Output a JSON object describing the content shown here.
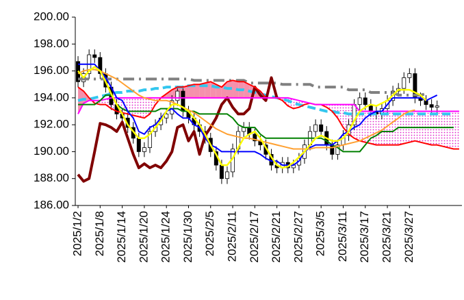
{
  "chart_data": {
    "type": "candlestick",
    "categories": [
      "2025/1/2",
      null,
      null,
      null,
      "2025/1/8",
      null,
      null,
      null,
      "2025/1/14",
      null,
      null,
      null,
      "2025/1/20",
      null,
      null,
      null,
      "2025/1/24",
      null,
      null,
      null,
      "2025/1/30",
      null,
      null,
      null,
      "2025/2/5",
      null,
      null,
      null,
      "2025/2/11",
      null,
      null,
      null,
      "2025/2/17",
      null,
      null,
      null,
      "2025/2/21",
      null,
      null,
      null,
      "2025/2/27",
      null,
      null,
      null,
      "2025/3/5",
      null,
      null,
      null,
      "2025/3/11",
      null,
      null,
      null,
      "2025/3/17",
      null,
      null,
      null,
      "2025/3/21",
      null,
      null,
      null,
      "2025/3/27",
      null,
      null,
      null,
      null,
      null,
      null,
      null,
      null,
      null
    ],
    "ylim": [
      186,
      200
    ],
    "yticks": [
      {
        "value": 186,
        "label": "186.00"
      },
      {
        "value": 188,
        "label": "188.00"
      },
      {
        "value": 190,
        "label": "190.00"
      },
      {
        "value": 192,
        "label": "192.00"
      },
      {
        "value": 194,
        "label": "194.00"
      },
      {
        "value": 196,
        "label": "196.00"
      },
      {
        "value": 198,
        "label": "198.00"
      },
      {
        "value": 200,
        "label": "200.00"
      }
    ],
    "grid": false,
    "up_color": "#ffffff",
    "down_color": "#000000",
    "ohlc": {
      "open": [
        196.7,
        195.2,
        195.8,
        197.2,
        197.0,
        195.8,
        194.8,
        193.5,
        192.8,
        192.5,
        191.8,
        191.0,
        190.0,
        190.3,
        191.5,
        192.0,
        192.5,
        192.8,
        193.8,
        194.5,
        193.0,
        192.5,
        192.0,
        191.5,
        191.0,
        190.0,
        189.0,
        188.0,
        188.5,
        190.2,
        191.5,
        191.8,
        191.3,
        190.8,
        190.5,
        189.8,
        189.0,
        188.8,
        189.2,
        188.8,
        189.0,
        189.5,
        190.5,
        191.5,
        192.0,
        191.5,
        190.5,
        189.8,
        190.5,
        191.2,
        192.0,
        193.5,
        194.0,
        193.5,
        193.0,
        192.8,
        193.2,
        193.8,
        194.5,
        194.7,
        195.5,
        195.8,
        194.0,
        193.8,
        193.5,
        193.3,
        null,
        null,
        null,
        null
      ],
      "high": [
        197.1,
        196.2,
        197.6,
        197.6,
        197.4,
        196.2,
        195.2,
        193.9,
        193.2,
        192.9,
        192.2,
        191.4,
        190.7,
        191.9,
        192.4,
        192.9,
        193.2,
        194.2,
        194.9,
        194.9,
        193.4,
        192.9,
        192.4,
        191.9,
        191.4,
        190.4,
        189.4,
        188.9,
        190.6,
        191.9,
        192.2,
        192.2,
        191.7,
        191.2,
        190.9,
        190.2,
        189.4,
        189.6,
        189.6,
        189.4,
        189.9,
        190.9,
        191.9,
        192.4,
        192.4,
        191.9,
        190.9,
        190.9,
        191.6,
        192.4,
        193.9,
        194.4,
        194.4,
        193.9,
        193.4,
        193.6,
        194.2,
        194.9,
        195.1,
        195.9,
        196.2,
        196.2,
        194.4,
        194.2,
        193.9,
        193.8,
        null,
        null,
        null,
        null
      ],
      "low": [
        194.8,
        194.8,
        195.4,
        196.6,
        195.4,
        194.4,
        193.1,
        192.4,
        192.1,
        191.4,
        190.6,
        189.6,
        189.6,
        189.9,
        191.1,
        191.6,
        192.1,
        192.4,
        193.4,
        192.6,
        192.1,
        191.6,
        191.1,
        190.6,
        189.6,
        188.6,
        187.6,
        187.6,
        188.1,
        189.8,
        191.1,
        190.9,
        190.4,
        190.1,
        189.4,
        188.6,
        188.4,
        188.4,
        188.4,
        188.4,
        188.6,
        189.1,
        190.1,
        191.1,
        191.1,
        190.1,
        189.4,
        189.4,
        190.1,
        190.8,
        191.6,
        193.1,
        193.1,
        192.6,
        192.4,
        192.4,
        192.8,
        193.4,
        194.1,
        194.3,
        195.1,
        193.6,
        193.4,
        193.1,
        192.9,
        192.9,
        null,
        null,
        null,
        null
      ],
      "close": [
        195.2,
        195.8,
        197.2,
        197.0,
        195.8,
        194.8,
        193.5,
        192.8,
        192.5,
        191.8,
        191.0,
        190.0,
        190.3,
        191.5,
        192.0,
        192.5,
        192.8,
        193.8,
        194.5,
        193.0,
        192.5,
        192.0,
        191.5,
        191.0,
        190.0,
        189.0,
        188.0,
        188.5,
        190.2,
        191.5,
        191.8,
        191.3,
        190.8,
        190.5,
        189.8,
        189.0,
        188.8,
        189.2,
        188.8,
        189.0,
        189.5,
        190.5,
        191.5,
        192.0,
        191.5,
        190.5,
        189.8,
        190.5,
        191.2,
        192.0,
        193.5,
        194.0,
        193.5,
        193.0,
        192.8,
        193.2,
        193.8,
        194.5,
        194.7,
        195.5,
        195.8,
        194.0,
        193.8,
        193.5,
        193.3,
        193.4,
        null,
        null,
        null,
        null
      ]
    },
    "cloud": {
      "span_a": 3,
      "span_b": 4,
      "a_above_color": "#f590ac",
      "b_above_color": "#e020c8"
    },
    "series": [
      {
        "color": "#808080",
        "width": 4,
        "dash": "16 7 3 7",
        "values": [
          195.4,
          195.4,
          195.4,
          195.4,
          195.4,
          195.4,
          195.4,
          195.4,
          195.4,
          195.4,
          195.4,
          195.4,
          195.4,
          195.4,
          195.4,
          195.4,
          195.4,
          195.4,
          195.4,
          195.4,
          195.4,
          195.3,
          195.3,
          195.3,
          195.3,
          195.3,
          195.3,
          195.3,
          195.3,
          195.3,
          195.3,
          195.1,
          195.1,
          195.1,
          195.1,
          195.1,
          195.1,
          195.0,
          195.0,
          195.0,
          195.0,
          195.0,
          195.0,
          194.8,
          194.8,
          194.8,
          194.8,
          194.8,
          194.8,
          194.6,
          194.6,
          194.6,
          194.6,
          194.4,
          194.4,
          194.4,
          194.4,
          194.4,
          194.2,
          194.2,
          194.2,
          194.2,
          194.2,
          194.3,
          null,
          null,
          null,
          null,
          null,
          null
        ]
      },
      {
        "color": "#33c6ee",
        "width": 4,
        "dash": "12 6",
        "values": [
          193.8,
          193.9,
          193.9,
          194.0,
          194.1,
          194.2,
          194.3,
          194.4,
          194.4,
          194.5,
          194.5,
          194.5,
          194.6,
          194.6,
          194.7,
          194.7,
          194.8,
          194.8,
          194.8,
          194.8,
          194.9,
          194.9,
          194.9,
          194.9,
          194.9,
          194.8,
          194.8,
          194.7,
          194.7,
          194.6,
          194.6,
          194.5,
          194.4,
          194.3,
          194.2,
          194.1,
          194.0,
          193.9,
          193.8,
          193.6,
          193.5,
          193.4,
          193.3,
          193.2,
          193.1,
          193.0,
          193.0,
          192.9,
          192.9,
          192.8,
          192.8,
          192.8,
          192.8,
          192.8,
          192.8,
          192.8,
          192.8,
          192.8,
          192.8,
          192.8,
          192.8,
          192.8,
          192.8,
          192.8,
          192.8,
          192.8,
          192.8,
          192.8,
          192.8,
          null
        ]
      },
      {
        "color": "#800000",
        "width": 4,
        "dash": null,
        "values": [
          188.3,
          187.8,
          188.0,
          190.0,
          192.1,
          192.0,
          191.8,
          191.5,
          192.2,
          191.0,
          189.8,
          188.8,
          189.1,
          188.8,
          189.0,
          188.8,
          189.3,
          190.0,
          191.8,
          192.0,
          190.8,
          191.5,
          189.8,
          191.2,
          191.8,
          192.5,
          193.5,
          194.0,
          193.3,
          192.8,
          192.8,
          193.2,
          194.8,
          194.2,
          193.8,
          195.5,
          194.0,
          null,
          null,
          null,
          null,
          null,
          null,
          null,
          null,
          null,
          null,
          null,
          null,
          null,
          null,
          null,
          null,
          null,
          null,
          null,
          null,
          null,
          null,
          null,
          null,
          null,
          null,
          null,
          null,
          null,
          null,
          null,
          null,
          null
        ]
      },
      {
        "color": "#ff0000",
        "width": 2,
        "dash": null,
        "values": [
          194.8,
          194.5,
          194.0,
          193.6,
          193.5,
          193.5,
          193.2,
          193.0,
          192.9,
          192.8,
          192.7,
          192.6,
          192.5,
          192.8,
          193.5,
          194.0,
          194.3,
          194.6,
          194.8,
          194.8,
          194.9,
          195.0,
          195.0,
          195.1,
          195.2,
          195.0,
          194.8,
          195.2,
          195.3,
          195.2,
          195.2,
          195.0,
          194.8,
          194.5,
          194.0,
          194.0,
          194.0,
          193.8,
          193.4,
          193.2,
          193.3,
          193.5,
          193.6,
          193.5,
          193.5,
          193.3,
          193.0,
          192.5,
          191.8,
          191.3,
          191.0,
          190.8,
          190.7,
          190.6,
          190.5,
          190.5,
          190.5,
          190.5,
          190.5,
          190.6,
          190.7,
          190.8,
          190.7,
          190.6,
          190.5,
          190.5,
          190.4,
          190.3,
          190.2,
          190.2
        ]
      },
      {
        "color": "#ff00ff",
        "width": 2,
        "dash": null,
        "values": [
          192.8,
          193.6,
          193.8,
          193.8,
          193.8,
          193.9,
          194.0,
          194.0,
          194.0,
          194.0,
          194.0,
          194.0,
          194.0,
          194.0,
          194.0,
          194.0,
          194.0,
          194.0,
          194.0,
          194.0,
          194.0,
          194.0,
          194.0,
          194.0,
          194.0,
          194.0,
          194.0,
          194.0,
          194.0,
          194.0,
          194.0,
          194.0,
          194.0,
          194.0,
          194.0,
          194.0,
          194.0,
          194.0,
          194.0,
          193.9,
          193.8,
          193.7,
          193.6,
          193.5,
          193.5,
          193.5,
          193.5,
          193.5,
          193.5,
          193.5,
          193.5,
          193.0,
          193.0,
          193.0,
          193.0,
          193.0,
          193.0,
          193.0,
          193.0,
          193.0,
          193.0,
          193.0,
          193.0,
          193.0,
          193.0,
          193.0,
          193.0,
          193.0,
          193.0,
          193.0
        ]
      },
      {
        "color": "#008000",
        "width": 2,
        "dash": null,
        "values": [
          193.5,
          193.5,
          193.5,
          193.5,
          193.8,
          194.2,
          194.2,
          193.5,
          193.2,
          193.0,
          193.0,
          193.0,
          193.0,
          193.0,
          193.0,
          193.2,
          193.2,
          193.2,
          193.2,
          193.0,
          193.0,
          193.0,
          192.8,
          192.8,
          192.8,
          192.8,
          192.8,
          192.8,
          192.5,
          192.0,
          191.8,
          191.8,
          191.8,
          191.3,
          191.0,
          191.0,
          191.0,
          191.0,
          191.0,
          191.0,
          191.0,
          191.0,
          191.0,
          191.0,
          191.0,
          190.8,
          190.5,
          190.3,
          190.0,
          190.0,
          190.0,
          190.0,
          190.5,
          191.0,
          191.2,
          191.5,
          191.5,
          191.5,
          191.8,
          191.8,
          191.8,
          191.8,
          191.8,
          191.8,
          191.8,
          191.8,
          191.8,
          191.8,
          191.8,
          null
        ]
      },
      {
        "color": "#0000ff",
        "width": 2,
        "dash": null,
        "values": [
          196.5,
          196.5,
          196.5,
          196.5,
          196.0,
          195.5,
          194.8,
          194.0,
          193.8,
          193.0,
          192.5,
          191.5,
          191.3,
          191.8,
          192.0,
          192.5,
          193.0,
          193.2,
          192.8,
          192.5,
          192.5,
          192.0,
          191.8,
          191.0,
          190.5,
          190.3,
          190.0,
          190.0,
          190.0,
          190.0,
          190.0,
          190.0,
          190.0,
          189.8,
          189.5,
          189.3,
          189.3,
          189.0,
          189.0,
          189.0,
          189.3,
          190.0,
          190.3,
          190.5,
          190.5,
          190.5,
          190.5,
          190.8,
          191.3,
          191.5,
          191.8,
          192.0,
          192.5,
          192.8,
          193.0,
          193.0,
          193.5,
          194.0,
          194.0,
          194.0,
          194.0,
          194.0,
          194.0,
          193.8,
          194.0,
          194.2,
          null,
          null,
          null,
          null
        ]
      },
      {
        "color": "#ffa030",
        "width": 2,
        "dash": null,
        "values": [
          195.8,
          196.0,
          196.1,
          196.1,
          196.0,
          195.8,
          195.6,
          195.4,
          195.1,
          194.8,
          194.5,
          194.2,
          194.0,
          193.9,
          193.8,
          193.8,
          193.8,
          193.7,
          193.5,
          193.3,
          193.1,
          192.9,
          192.6,
          192.3,
          192.0,
          191.7,
          191.5,
          191.3,
          191.2,
          191.1,
          191.0,
          191.0,
          190.9,
          190.8,
          190.7,
          190.6,
          190.5,
          190.4,
          190.3,
          190.2,
          190.2,
          190.2,
          190.2,
          190.3,
          190.3,
          190.3,
          190.3,
          190.4,
          190.5,
          190.6,
          190.7,
          190.8,
          191.0,
          191.2,
          191.4,
          191.6,
          191.9,
          192.2,
          192.5,
          192.8,
          193.0,
          193.1,
          null,
          null,
          null,
          null,
          null,
          null,
          null,
          null
        ]
      },
      {
        "color": "#ffff00",
        "width": 2.5,
        "dash": null,
        "values": [
          196.0,
          195.5,
          196.0,
          196.3,
          196.0,
          195.2,
          194.3,
          193.5,
          192.8,
          192.0,
          191.5,
          191.0,
          191.0,
          191.3,
          191.8,
          192.3,
          193.0,
          193.5,
          193.5,
          193.3,
          193.0,
          192.5,
          192.0,
          191.3,
          190.5,
          189.8,
          189.0,
          189.0,
          189.5,
          190.3,
          191.0,
          191.3,
          191.5,
          191.0,
          190.3,
          189.6,
          189.0,
          188.8,
          188.9,
          189.2,
          189.6,
          190.0,
          190.5,
          191.0,
          191.2,
          191.0,
          190.8,
          190.8,
          191.0,
          191.5,
          192.3,
          193.0,
          193.3,
          193.5,
          193.4,
          193.6,
          193.8,
          194.2,
          194.6,
          194.6,
          194.6,
          194.4,
          194.2,
          193.8,
          null,
          null,
          null,
          null,
          null,
          null
        ]
      }
    ]
  }
}
